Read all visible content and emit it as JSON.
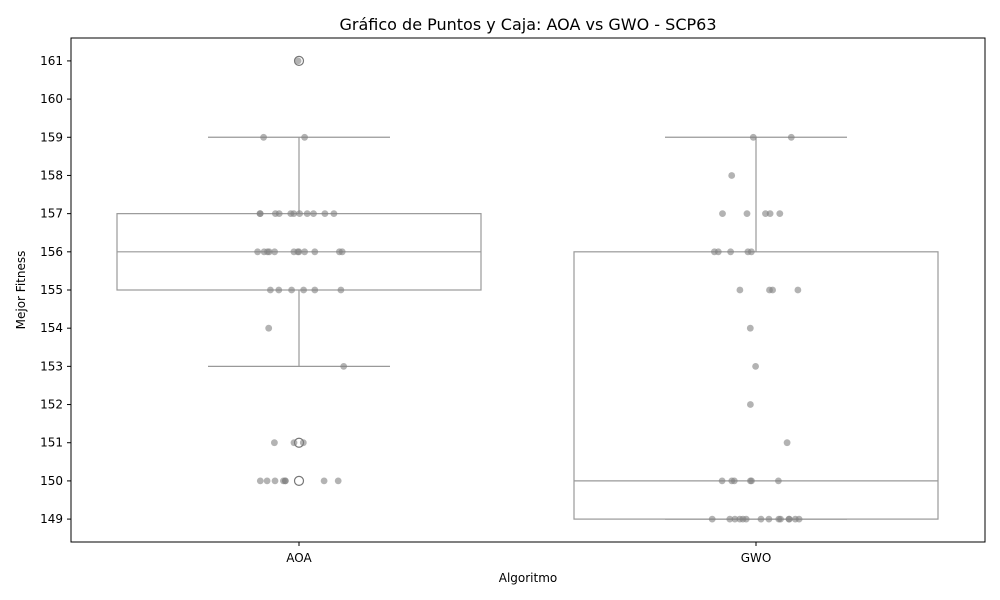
{
  "chart_data": {
    "type": "box",
    "title": "Gráfico de Puntos y Caja: AOA vs GWO - SCP63",
    "xlabel": "Algoritmo",
    "ylabel": "Mejor Fitness",
    "ylim": [
      148.4,
      161.6
    ],
    "yticks": [
      149,
      150,
      151,
      152,
      153,
      154,
      155,
      156,
      157,
      158,
      159,
      160,
      161
    ],
    "categories": [
      "AOA",
      "GWO"
    ],
    "grid": false,
    "colors": {
      "box_edge": "#999999",
      "point": "#808080",
      "frame": "#000000"
    },
    "boxes": [
      {
        "name": "AOA",
        "whisker_low": 153,
        "q1": 155,
        "median": 156,
        "q3": 157,
        "whisker_high": 159,
        "outliers": [
          161,
          151,
          150
        ]
      },
      {
        "name": "GWO",
        "whisker_low": 149,
        "q1": 149,
        "median": 150,
        "q3": 156,
        "whisker_high": 159,
        "outliers": []
      }
    ],
    "points": [
      {
        "category": "AOA",
        "values": [
          161,
          159,
          159,
          157,
          157,
          157,
          157,
          157,
          157,
          157,
          157,
          157,
          157,
          157,
          156,
          156,
          156,
          156,
          156,
          156,
          156,
          156,
          156,
          156,
          156,
          156,
          155,
          155,
          155,
          155,
          155,
          155,
          154,
          153,
          151,
          151,
          151,
          150,
          150,
          150,
          150,
          150,
          150,
          150,
          150
        ]
      },
      {
        "category": "GWO",
        "values": [
          159,
          159,
          158,
          157,
          157,
          157,
          157,
          157,
          156,
          156,
          156,
          156,
          156,
          155,
          155,
          155,
          155,
          154,
          153,
          152,
          151,
          150,
          150,
          150,
          150,
          150,
          150,
          149,
          149,
          149,
          149,
          149,
          149,
          149,
          149,
          149,
          149,
          149,
          149,
          149,
          149
        ]
      }
    ]
  }
}
